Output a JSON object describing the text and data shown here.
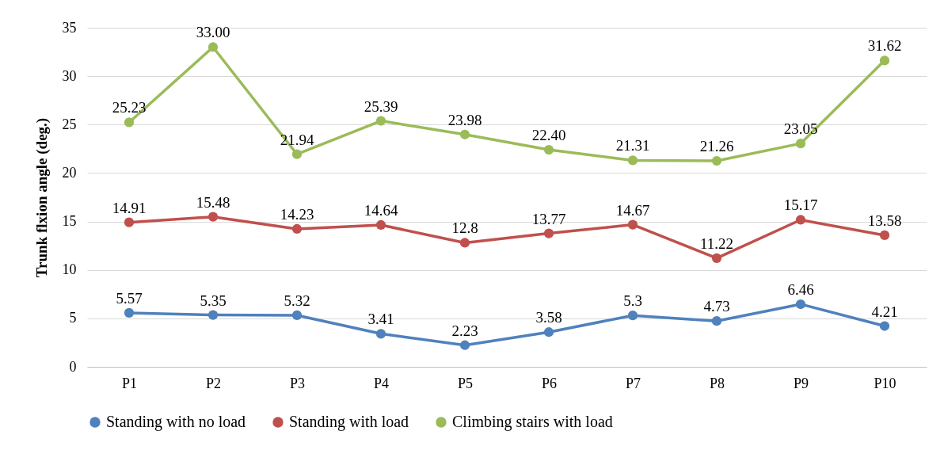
{
  "chart_data": {
    "type": "line",
    "ylabel": "Trunk flxion angle (deg.)",
    "categories": [
      "P1",
      "P2",
      "P3",
      "P4",
      "P5",
      "P6",
      "P7",
      "P8",
      "P9",
      "P10"
    ],
    "ylim": [
      0,
      35
    ],
    "yticks": [
      0,
      5,
      10,
      15,
      20,
      25,
      30,
      35
    ],
    "grid": "y",
    "legend": "bottom",
    "marker": "circle",
    "line_style": "solid",
    "series": [
      {
        "name": "Standing with no load",
        "color": "#4f81bd",
        "values": [
          5.57,
          5.35,
          5.32,
          3.41,
          2.23,
          3.58,
          5.3,
          4.73,
          6.46,
          4.21
        ],
        "value_labels": [
          "5.57",
          "5.35",
          "5.32",
          "3.41",
          "2.23",
          "3.58",
          "5.3",
          "4.73",
          "6.46",
          "4.21"
        ]
      },
      {
        "name": "Standing with load",
        "color": "#c0504d",
        "values": [
          14.91,
          15.48,
          14.23,
          14.64,
          12.8,
          13.77,
          14.67,
          11.22,
          15.17,
          13.58
        ],
        "value_labels": [
          "14.91",
          "15.48",
          "14.23",
          "14.64",
          "12.8",
          "13.77",
          "14.67",
          "11.22",
          "15.17",
          "13.58"
        ]
      },
      {
        "name": "Climbing stairs with load",
        "color": "#9bbb59",
        "values": [
          25.23,
          33,
          21.94,
          25.39,
          23.98,
          22.4,
          21.31,
          21.26,
          23.05,
          31.62
        ],
        "value_labels": [
          "25.23",
          "33.00",
          "21.94",
          "25.39",
          "23.98",
          "22.40",
          "21.31",
          "21.26",
          "23.05",
          "31.62"
        ]
      }
    ]
  }
}
